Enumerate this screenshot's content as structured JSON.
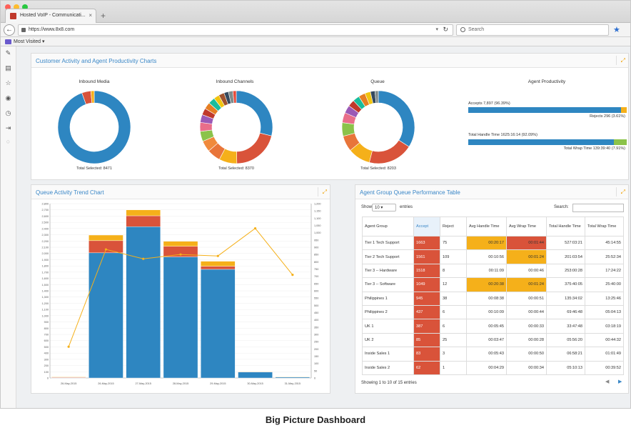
{
  "browser": {
    "tab_title": "Hosted VoIP - Communicati...",
    "tab_close": "×",
    "new_tab": "+",
    "url": "https://www.8x8.com",
    "search_placeholder": "Search",
    "bookmark_folder": "Most Visited ▾",
    "icons": [
      "back-arrow-icon",
      "lock-icon",
      "reload-icon",
      "search-icon",
      "bookmark-star-icon",
      "folder-icon"
    ]
  },
  "sidebar": {
    "icons": [
      "edit-icon",
      "document-icon",
      "star-icon",
      "eye-icon",
      "clock-icon",
      "logout-icon",
      "circle-icon"
    ]
  },
  "panels": {
    "top_title": "Customer Activity and Agent Productivity Charts",
    "trend_title": "Queue Activity Trend Chart",
    "table_title": "Agent Group Queue Performance Table",
    "expand_glyph": "⤢"
  },
  "donuts": [
    {
      "title": "Inbound Media",
      "footer": "Total Selected: 8471",
      "slices": [
        {
          "value": 94.5,
          "color": "#2e86c1"
        },
        {
          "value": 4.0,
          "color": "#d9533a"
        },
        {
          "value": 1.5,
          "color": "#f5b01a"
        }
      ]
    },
    {
      "title": "Inbound Channels",
      "footer": "Total Selected: 8370",
      "slices": [
        {
          "value": 29,
          "color": "#2e86c1"
        },
        {
          "value": 21,
          "color": "#d9533a"
        },
        {
          "value": 8,
          "color": "#f5b01a"
        },
        {
          "value": 6,
          "color": "#e8753a"
        },
        {
          "value": 5,
          "color": "#f08a3c"
        },
        {
          "value": 4.5,
          "color": "#8bc34a"
        },
        {
          "value": 4,
          "color": "#e96e8a"
        },
        {
          "value": 3.5,
          "color": "#9b59b6"
        },
        {
          "value": 3,
          "color": "#c0392b"
        },
        {
          "value": 3,
          "color": "#e67e22"
        },
        {
          "value": 3,
          "color": "#1abc9c"
        },
        {
          "value": 2.5,
          "color": "#f1c40f"
        },
        {
          "value": 2.5,
          "color": "#a0522d"
        },
        {
          "value": 2,
          "color": "#34495e"
        },
        {
          "value": 2,
          "color": "#7f8c8d"
        },
        {
          "value": 1.5,
          "color": "#e74c3c"
        }
      ]
    },
    {
      "title": "Queue",
      "footer": "Total Selected: 8203",
      "slices": [
        {
          "value": 34,
          "color": "#2e86c1"
        },
        {
          "value": 20,
          "color": "#d9533a"
        },
        {
          "value": 10,
          "color": "#f5b01a"
        },
        {
          "value": 7,
          "color": "#e8753a"
        },
        {
          "value": 6,
          "color": "#8bc34a"
        },
        {
          "value": 4.5,
          "color": "#e96e8a"
        },
        {
          "value": 3.5,
          "color": "#9b59b6"
        },
        {
          "value": 3,
          "color": "#c0392b"
        },
        {
          "value": 3,
          "color": "#1abc9c"
        },
        {
          "value": 3,
          "color": "#e67e22"
        },
        {
          "value": 2.5,
          "color": "#f1c40f"
        },
        {
          "value": 2,
          "color": "#34495e"
        },
        {
          "value": 1.5,
          "color": "#7f8c8d"
        }
      ]
    }
  ],
  "productivity": {
    "title": "Agent Productivity",
    "accepts_label": "Accepts 7,897 (96.39%)",
    "rejects_label": "Rejects 296 (3.61%)",
    "accepts_fraction": 0.9639,
    "handle_label": "Total Handle Time 1625:16:14 (92.09%)",
    "wrap_label": "Total Wrap Time 139:39:40 (7.91%)",
    "handle_fraction": 0.9209,
    "colors": {
      "primary": "#2e86c1",
      "reject": "#f5b01a",
      "wrap": "#8bc34a"
    }
  },
  "chart_data": {
    "type": "bar",
    "categories": [
      "26-May-2015",
      "26-May-2015",
      "27-May-2015",
      "28-May-2015",
      "29-May-2015",
      "30-May-2015",
      "31-May-2015"
    ],
    "series": [
      {
        "values": [
          5,
          2010,
          2430,
          1945,
          1745,
          95,
          15
        ],
        "color": "#2e86c1"
      },
      {
        "values": [
          8,
          195,
          175,
          170,
          50,
          8,
          5
        ],
        "color": "#d9533a"
      },
      {
        "values": [
          8,
          90,
          95,
          80,
          80,
          4,
          2
        ],
        "color": "#f5b01a"
      }
    ],
    "line": {
      "values": [
        215,
        885,
        820,
        850,
        840,
        1030,
        710
      ],
      "color": "#f5b01a"
    },
    "y_ticks_left": [
      "0",
      "100",
      "200",
      "300",
      "400",
      "500",
      "600",
      "700",
      "800",
      "900",
      "1,000",
      "1,100",
      "1,200",
      "1,300",
      "1,400",
      "1,500",
      "1,600",
      "1,700",
      "1,800",
      "1,900",
      "2,000",
      "2,100",
      "2,200",
      "2,300",
      "2,400",
      "2,500",
      "2,600",
      "2,700",
      "2,800"
    ],
    "y_ticks_right": [
      "0",
      "50",
      "100",
      "150",
      "200",
      "250",
      "300",
      "350",
      "400",
      "450",
      "500",
      "550",
      "600",
      "650",
      "700",
      "750",
      "800",
      "850",
      "900",
      "950",
      "1,000",
      "1,050",
      "1,100",
      "1,150",
      "1,200"
    ],
    "ylim_left": [
      0,
      2800
    ],
    "ylim_right": [
      0,
      1200
    ]
  },
  "table": {
    "show_label": "Show",
    "entries_label": "entries",
    "length_value": "10",
    "search_label": "Search:",
    "headers": [
      "Agent Group",
      "Accept",
      "Reject",
      "Avg Handle Time",
      "Avg Wrap Time",
      "Total Handle Time",
      "Total Wrap Time"
    ],
    "rows": [
      [
        "Tier 1 Tech Support",
        "1663",
        "75",
        "00:20:17",
        "00:01:44",
        "527:03:21",
        "45:14:55"
      ],
      [
        "Tier 2 Tech Support",
        "1561",
        "109",
        "00:10:56",
        "00:01:24",
        "201:03:54",
        "25:52:34"
      ],
      [
        "Tier 3 -- Hardware",
        "1518",
        "8",
        "00:11:09",
        "00:00:46",
        "253:00:28",
        "17:24:22"
      ],
      [
        "Tier 3 -- Software",
        "1049",
        "12",
        "00:20:38",
        "00:01:24",
        "375:40:05",
        "25:40:00"
      ],
      [
        "Philippines 1",
        "945",
        "38",
        "00:08:38",
        "00:00:51",
        "135:34:02",
        "13:25:46"
      ],
      [
        "Philippines 2",
        "437",
        "6",
        "00:10:09",
        "00:00:44",
        "69:46:48",
        "05:04:13"
      ],
      [
        "UK 1",
        "387",
        "6",
        "00:05:45",
        "00:00:33",
        "33:47:48",
        "03:18:19"
      ],
      [
        "UK 2",
        "85",
        "25",
        "00:03:47",
        "00:00:28",
        "05:56:20",
        "00:44:32"
      ],
      [
        "Inside Sales 1",
        "83",
        "3",
        "00:05:43",
        "00:00:50",
        "06:58:21",
        "01:01:49"
      ],
      [
        "Inside Sales 2",
        "62",
        "1",
        "00:04:29",
        "00:00:34",
        "05:10:13",
        "00:39:52"
      ]
    ],
    "highlights": [
      {
        "row": 0,
        "col": 3,
        "color": "#f5b01a"
      },
      {
        "row": 0,
        "col": 4,
        "color": "#d9533a"
      },
      {
        "row": 1,
        "col": 4,
        "color": "#f5b01a"
      },
      {
        "row": 3,
        "col": 3,
        "color": "#f5b01a"
      },
      {
        "row": 3,
        "col": 4,
        "color": "#f5b01a"
      }
    ],
    "accept_color": "#d9533a",
    "footer": "Showing 1 to 10 of 15 entries",
    "prev": "◀",
    "next": "▶"
  },
  "caption": "Big Picture Dashboard"
}
